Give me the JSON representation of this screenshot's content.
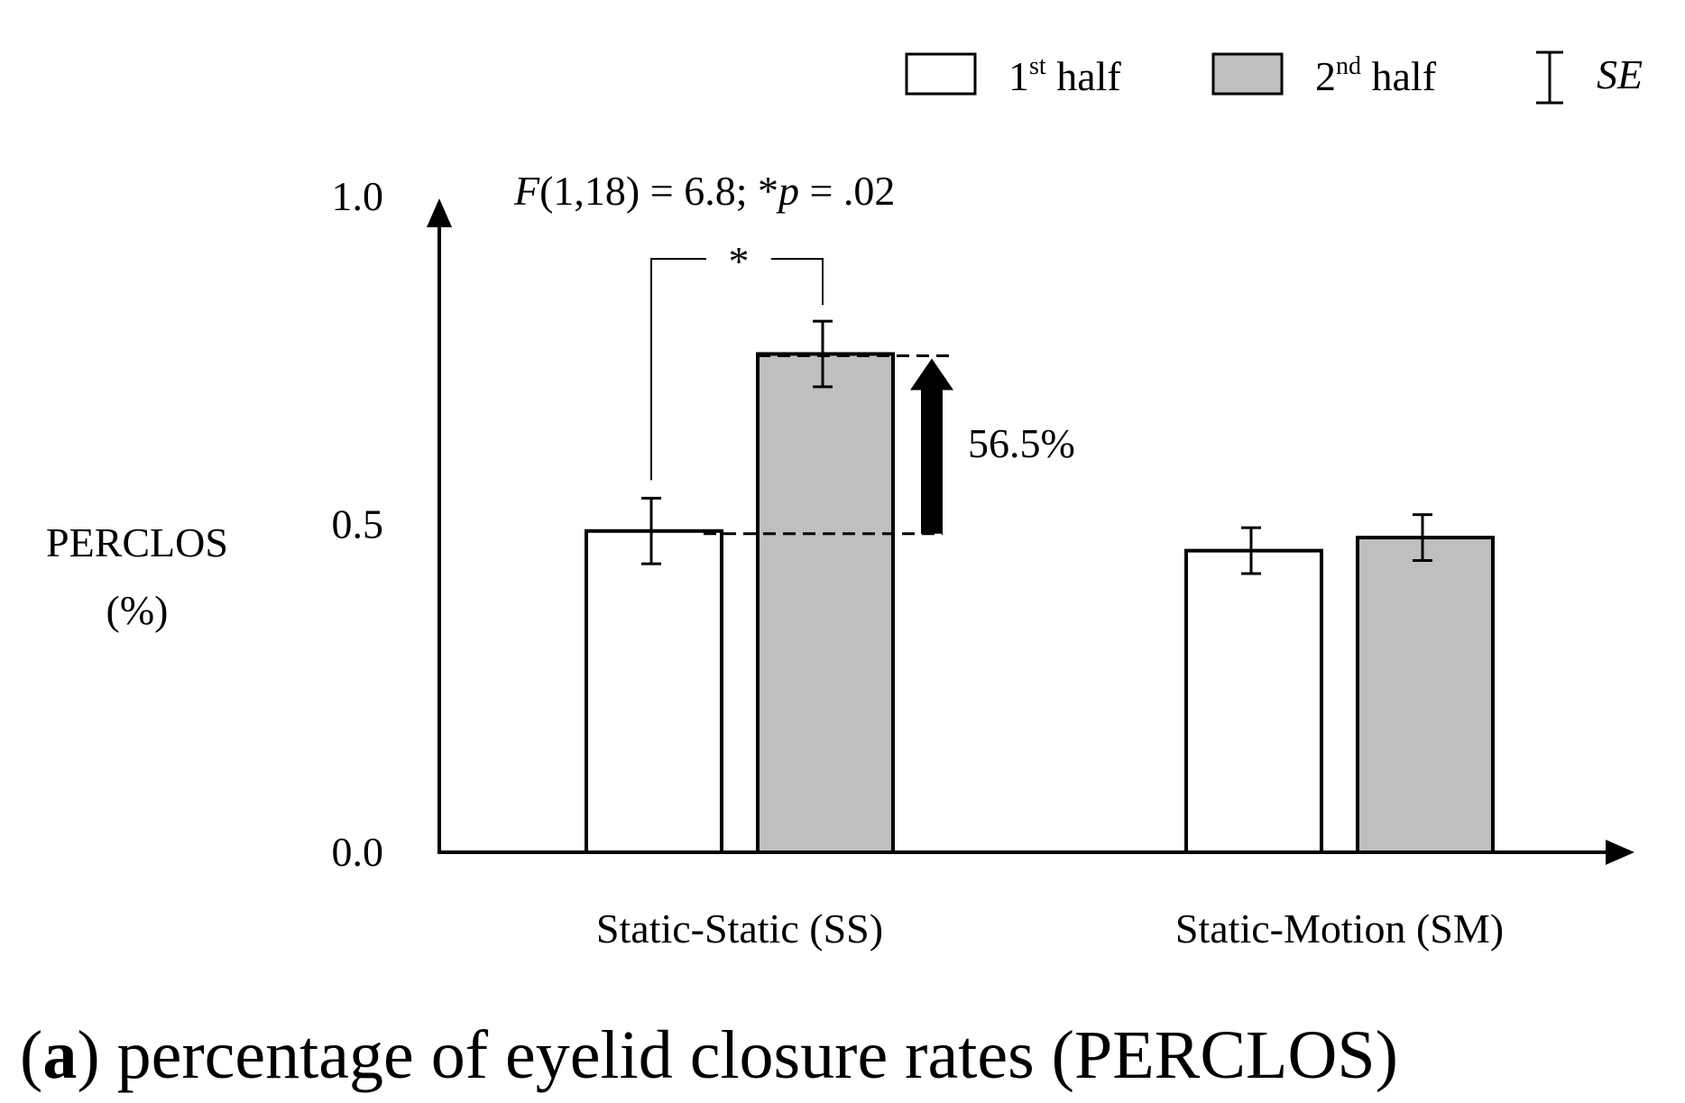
{
  "chart_data": {
    "type": "bar",
    "categories": [
      "Static-Static (SS)",
      "Static-Motion (SM)"
    ],
    "series": [
      {
        "name": "1st half",
        "values": [
          0.49,
          0.46
        ],
        "se": [
          0.05,
          0.035
        ],
        "color": "#ffffff"
      },
      {
        "name": "2nd half",
        "values": [
          0.76,
          0.48
        ],
        "se": [
          0.05,
          0.035
        ],
        "color": "#bfbfbf"
      }
    ],
    "ylabel_line1": "PERCLOS",
    "ylabel_line2": "(%)",
    "ylim": [
      0.0,
      1.0
    ],
    "yticks": [
      "0.0",
      "0.5",
      "1.0"
    ],
    "ytick_values": [
      0.0,
      0.5,
      1.0
    ],
    "legend": {
      "position": "top-right",
      "first_base": "1",
      "first_sup": "st",
      "first_tail": " half",
      "second_base": "2",
      "second_sup": "nd",
      "second_tail": " half",
      "se_label": "SE"
    },
    "annotations": {
      "stat_F": "F",
      "stat_rest": "(1,18) = 6.8; *",
      "stat_p": "p",
      "stat_end": " = .02",
      "significance_mark": "*",
      "increase_label": "56.5%"
    },
    "caption_letter": "a",
    "caption_open": "(",
    "caption_rest": ") percentage of eyelid closure rates (PERCLOS)"
  }
}
